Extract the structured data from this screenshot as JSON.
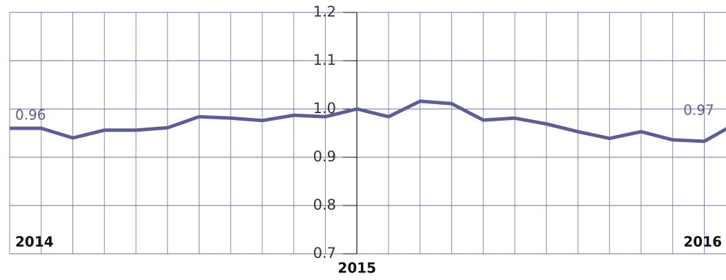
{
  "chart_data": {
    "type": "line",
    "categories": [
      "2014",
      null,
      null,
      null,
      null,
      null,
      null,
      null,
      null,
      null,
      null,
      "2015",
      null,
      null,
      null,
      null,
      null,
      null,
      null,
      null,
      null,
      null,
      "2016",
      null
    ],
    "series": [
      {
        "color": "#5e5e96",
        "values": [
          0.96,
          0.96,
          0.94,
          0.956,
          0.956,
          0.961,
          0.984,
          0.981,
          0.976,
          0.987,
          0.984,
          1.0,
          0.984,
          1.016,
          1.011,
          0.977,
          0.981,
          0.969,
          0.953,
          0.939,
          0.953,
          0.936,
          0.933,
          0.97
        ],
        "value_labels": [
          "0.96",
          null,
          null,
          null,
          null,
          null,
          null,
          null,
          null,
          null,
          null,
          null,
          null,
          null,
          null,
          null,
          null,
          null,
          null,
          null,
          null,
          null,
          null,
          "0.97"
        ]
      }
    ],
    "ylim": [
      0.7,
      1.2
    ],
    "yticks": [
      0.7,
      0.8,
      0.9,
      {
        "value": 1,
        "label": "1.0"
      },
      1.1,
      1.2
    ],
    "grid": true
  }
}
